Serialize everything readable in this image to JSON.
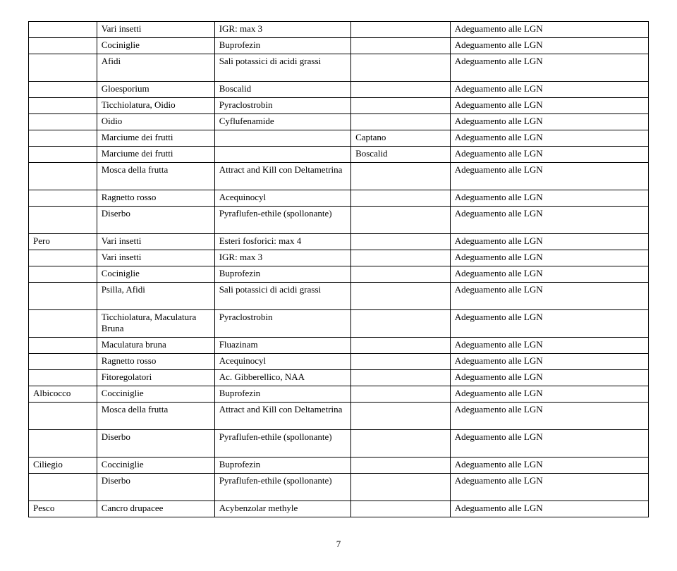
{
  "page_number": "7",
  "col_widths_pct": [
    11,
    19,
    22,
    16,
    32
  ],
  "font_family": "Times New Roman",
  "font_size_pt": 13,
  "border_color": "#000000",
  "background_color": "#ffffff",
  "text_color": "#000000",
  "rows": [
    {
      "c1": "",
      "c2": "Vari insetti",
      "c3": "IGR: max 3",
      "c4": "",
      "c5": "Adeguamento alle LGN"
    },
    {
      "c1": "",
      "c2": "Cociniglie",
      "c3": "Buprofezin",
      "c4": "",
      "c5": "Adeguamento alle LGN"
    },
    {
      "c1": "",
      "c2": "Afidi",
      "c3": "Sali potassici di acidi grassi",
      "c4": "",
      "c5": "Adeguamento alle LGN"
    },
    {
      "c1": "",
      "c2": "Gloesporium",
      "c3": "Boscalid",
      "c4": "",
      "c5": "Adeguamento alle LGN"
    },
    {
      "c1": "",
      "c2": "Ticchiolatura, Oidio",
      "c3": "Pyraclostrobin",
      "c4": "",
      "c5": "Adeguamento alle LGN"
    },
    {
      "c1": "",
      "c2": "Oidio",
      "c3": "Cyflufenamide",
      "c4": "",
      "c5": "Adeguamento alle LGN"
    },
    {
      "c1": "",
      "c2": "Marciume dei frutti",
      "c3": "",
      "c4": "Captano",
      "c5": "Adeguamento alle LGN"
    },
    {
      "c1": "",
      "c2": "Marciume dei frutti",
      "c3": "",
      "c4": "Boscalid",
      "c5": "Adeguamento alle LGN"
    },
    {
      "c1": "",
      "c2": "Mosca della frutta",
      "c3": "Attract and Kill con Deltametrina",
      "c4": "",
      "c5": "Adeguamento alle LGN"
    },
    {
      "c1": "",
      "c2": "Ragnetto rosso",
      "c3": "Acequinocyl",
      "c4": "",
      "c5": "Adeguamento alle LGN"
    },
    {
      "c1": "",
      "c2": "Diserbo",
      "c3": "Pyraflufen-ethile (spollonante)",
      "c4": "",
      "c5": "Adeguamento alle LGN"
    },
    {
      "c1": "Pero",
      "c2": "Vari insetti",
      "c3": "Esteri fosforici: max 4",
      "c4": "",
      "c5": "Adeguamento alle LGN"
    },
    {
      "c1": "",
      "c2": "Vari insetti",
      "c3": "IGR: max 3",
      "c4": "",
      "c5": "Adeguamento alle LGN"
    },
    {
      "c1": "",
      "c2": "Cociniglie",
      "c3": "Buprofezin",
      "c4": "",
      "c5": "Adeguamento alle LGN"
    },
    {
      "c1": "",
      "c2": "Psilla, Afidi",
      "c3": "Sali potassici di acidi grassi",
      "c4": "",
      "c5": "Adeguamento alle LGN"
    },
    {
      "c1": "",
      "c2": "Ticchiolatura, Maculatura Bruna",
      "c3": "Pyraclostrobin",
      "c4": "",
      "c5": "Adeguamento alle LGN"
    },
    {
      "c1": "",
      "c2": "Maculatura bruna",
      "c3": "Fluazinam",
      "c4": "",
      "c5": "Adeguamento alle LGN"
    },
    {
      "c1": "",
      "c2": "Ragnetto rosso",
      "c3": "Acequinocyl",
      "c4": "",
      "c5": "Adeguamento alle LGN"
    },
    {
      "c1": "",
      "c2": "Fitoregolatori",
      "c3": "Ac. Gibberellico, NAA",
      "c4": "",
      "c5": "Adeguamento alle LGN"
    },
    {
      "c1": "Albicocco",
      "c2": "Cocciniglie",
      "c3": "Buprofezin",
      "c4": "",
      "c5": "Adeguamento alle LGN"
    },
    {
      "c1": "",
      "c2": "Mosca della frutta",
      "c3": "Attract and Kill con Deltametrina",
      "c4": "",
      "c5": "Adeguamento alle LGN"
    },
    {
      "c1": "",
      "c2": "Diserbo",
      "c3": "Pyraflufen-ethile (spollonante)",
      "c4": "",
      "c5": "Adeguamento alle LGN"
    },
    {
      "c1": "Ciliegio",
      "c2": "Cocciniglie",
      "c3": "Buprofezin",
      "c4": "",
      "c5": "Adeguamento alle LGN"
    },
    {
      "c1": "",
      "c2": "Diserbo",
      "c3": "Pyraflufen-ethile (spollonante)",
      "c4": "",
      "c5": "Adeguamento alle LGN"
    },
    {
      "c1": "Pesco",
      "c2": "Cancro drupacee",
      "c3": "Acybenzolar methyle",
      "c4": "",
      "c5": "Adeguamento alle LGN"
    }
  ],
  "multiline_rows": [
    2,
    8,
    10,
    14,
    15,
    20,
    21,
    23
  ]
}
